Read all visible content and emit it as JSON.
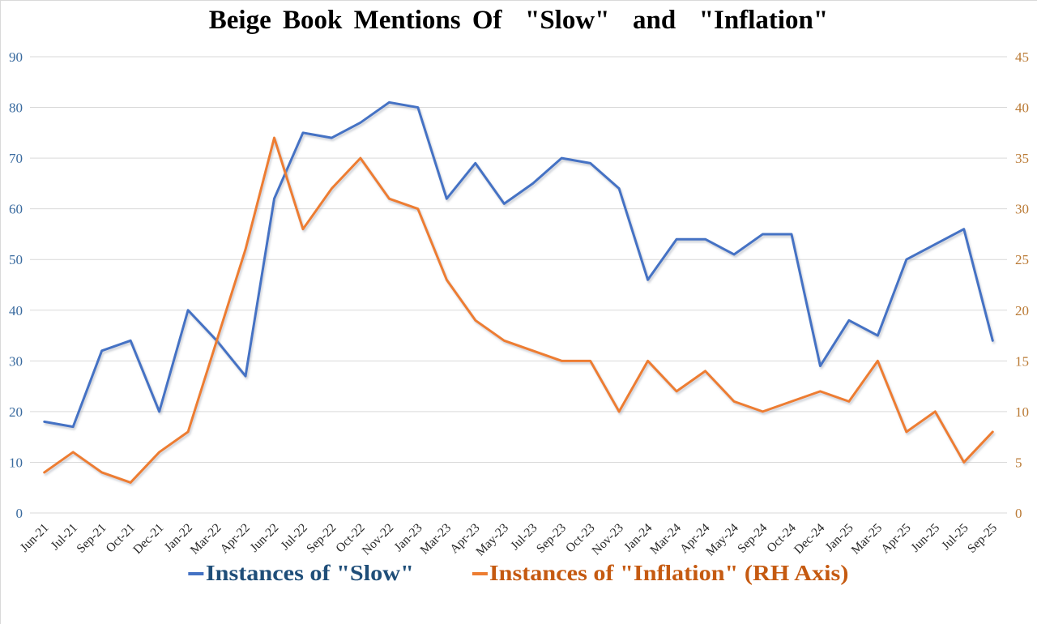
{
  "chart_data": {
    "type": "line",
    "title": "Beige Book Mentions Of  \"Slow\"  and  \"Inflation\"",
    "categories": [
      "Jun-21",
      "Jul-21",
      "Sep-21",
      "Oct-21",
      "Dec-21",
      "Jan-22",
      "Mar-22",
      "Apr-22",
      "Jun-22",
      "Jul-22",
      "Sep-22",
      "Oct-22",
      "Nov-22",
      "Jan-23",
      "Mar-23",
      "Apr-23",
      "May-23",
      "Jul-23",
      "Sep-23",
      "Oct-23",
      "Nov-23",
      "Jan-24",
      "Mar-24",
      "Apr-24",
      "May-24",
      "Sep-24",
      "Oct-24",
      "Dec-24",
      "Jan-25",
      "Mar-25",
      "Apr-25",
      "Jun-25",
      "Jul-25",
      "Sep-25"
    ],
    "series": [
      {
        "id": "slow",
        "name": "Instances of \"Slow\"",
        "axis": "left",
        "color": "#4472C4",
        "legend_text_color": "#1F4E79",
        "values": [
          18,
          17,
          32,
          34,
          20,
          40,
          34,
          27,
          62,
          75,
          74,
          77,
          81,
          80,
          62,
          69,
          61,
          65,
          70,
          69,
          64,
          46,
          54,
          54,
          51,
          55,
          55,
          29,
          38,
          35,
          50,
          53,
          56,
          34
        ]
      },
      {
        "id": "inflation",
        "name": "Instances of \"Inflation\" (RH Axis)",
        "axis": "right",
        "color": "#ED7D31",
        "legend_text_color": "#C55A11",
        "values": [
          4,
          6,
          4,
          3,
          6,
          8,
          17,
          26,
          37,
          28,
          32,
          35,
          31,
          30,
          23,
          19,
          17,
          16,
          15,
          15,
          10,
          15,
          12,
          14,
          11,
          10,
          11,
          12,
          11,
          15,
          8,
          10,
          5,
          8
        ]
      }
    ],
    "left_axis": {
      "min": 0,
      "max": 90,
      "step": 10,
      "color": "#3A6B9F"
    },
    "right_axis": {
      "min": 0,
      "max": 45,
      "step": 5,
      "color": "#BA7A35"
    },
    "gridline_color": "#D9D9D9",
    "grid": "horizontal",
    "legend_position": "bottom"
  }
}
